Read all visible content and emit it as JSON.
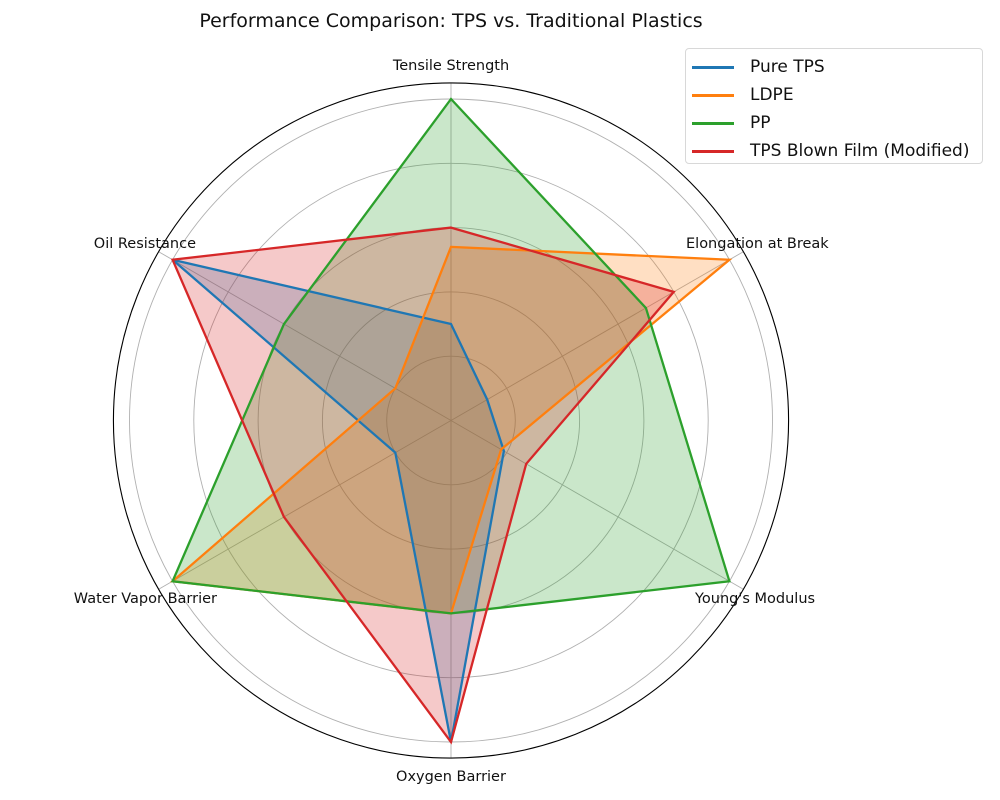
{
  "chart_data": {
    "type": "radar",
    "title": "Performance Comparison: TPS vs. Traditional Plastics",
    "axes": [
      "Tensile Strength",
      "Elongation at Break",
      "Young's Modulus",
      "Oxygen Barrier",
      "Water Vapor Barrier",
      "Oil Resistance"
    ],
    "rlim": [
      0,
      10.5
    ],
    "grid_rings": [
      2,
      4,
      6,
      8,
      10
    ],
    "grid": true,
    "legend_position": "upper right",
    "series": [
      {
        "name": "Pure TPS",
        "color": "#1f77b4",
        "values": [
          3,
          1.3,
          1.9,
          10,
          2,
          10
        ]
      },
      {
        "name": "LDPE",
        "color": "#ff7f0e",
        "values": [
          5.4,
          10,
          1.8,
          6,
          10,
          2
        ]
      },
      {
        "name": "PP",
        "color": "#2ca02c",
        "values": [
          10,
          7,
          10,
          6,
          10,
          6
        ]
      },
      {
        "name": "TPS Blown Film (Modified)",
        "color": "#d62728",
        "values": [
          6,
          8,
          2.7,
          10,
          6,
          10
        ]
      }
    ]
  },
  "legend": {
    "items": [
      {
        "label": "Pure TPS",
        "color": "#1f77b4"
      },
      {
        "label": "LDPE",
        "color": "#ff7f0e"
      },
      {
        "label": "PP",
        "color": "#2ca02c"
      },
      {
        "label": "TPS Blown Film (Modified)",
        "color": "#d62728"
      }
    ]
  }
}
